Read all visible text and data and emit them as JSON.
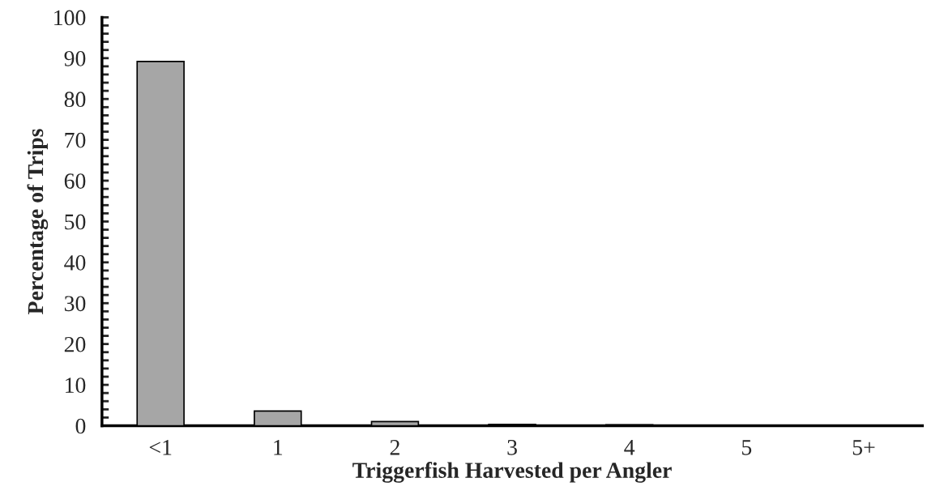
{
  "chart_data": {
    "type": "bar",
    "xlabel": "Triggerfish Harvested per Angler",
    "ylabel": "Percentage of Trips",
    "categories": [
      "<1",
      "1",
      "2",
      "3",
      "4",
      "5",
      "5+"
    ],
    "values": [
      89.2,
      3.6,
      1.0,
      0.3,
      0.2,
      0,
      0
    ],
    "color": "#a6a6a6",
    "ylim": [
      0,
      100
    ],
    "yticks": [
      0,
      10,
      20,
      30,
      40,
      50,
      60,
      70,
      80,
      90,
      100
    ],
    "grid": false
  }
}
